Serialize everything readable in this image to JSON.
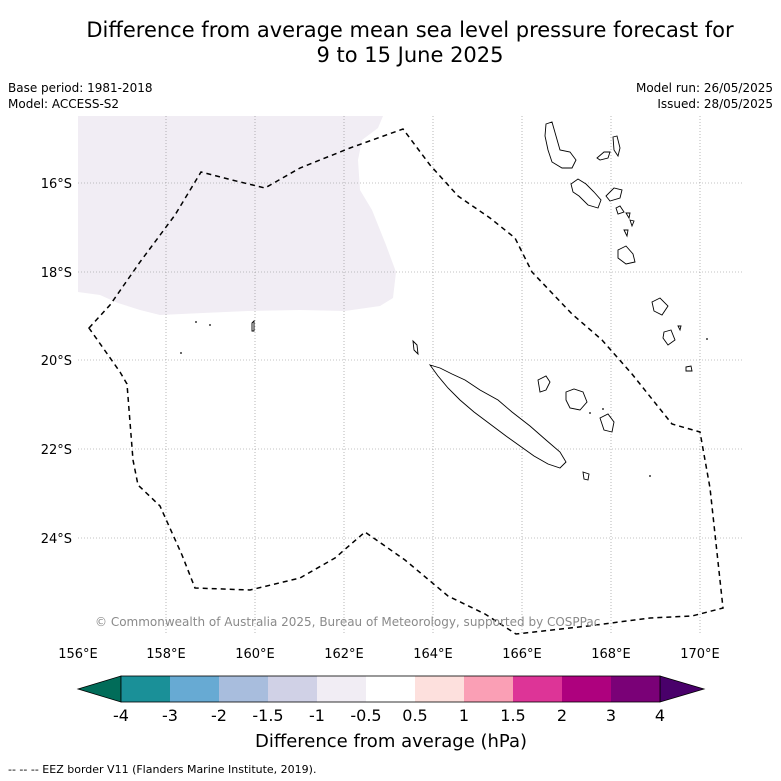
{
  "title_line1": "Difference from average mean sea level pressure forecast for",
  "title_line2": "9 to 15 June 2025",
  "meta_left": {
    "line1": "Base period: 1981-2018",
    "line2": "Model: ACCESS-S2"
  },
  "meta_right": {
    "line1": "Model run: 26/05/2025",
    "line2": "Issued: 28/05/2025"
  },
  "copyright": "© Commonwealth of Australia 2025, Bureau of Meteorology, supported by COSPPac",
  "lon_labels": [
    "156°E",
    "158°E",
    "160°E",
    "162°E",
    "164°E",
    "166°E",
    "168°E",
    "170°E"
  ],
  "lat_labels": [
    "16°S",
    "18°S",
    "20°S",
    "22°S",
    "24°S"
  ],
  "colorbar": {
    "title": "Difference from average (hPa)",
    "ticks": [
      "-4",
      "-3",
      "-2",
      "-1.5",
      "-1",
      "-0.5",
      "0.5",
      "1",
      "1.5",
      "2",
      "3",
      "4"
    ],
    "colors": [
      "#1a9098",
      "#67aad3",
      "#a8bddd",
      "#d0d1e6",
      "#f1edf4",
      "#ffffff",
      "#fde0dd",
      "#fa9fb5",
      "#dd3497",
      "#ae017e",
      "#7a0177"
    ],
    "under_color": "#016c59",
    "over_color": "#49006a"
  },
  "anomaly_fill_color": "#f1edf4",
  "footnote": "--  --  -- EEZ border V11 (Flanders Marine Institute, 2019)."
}
